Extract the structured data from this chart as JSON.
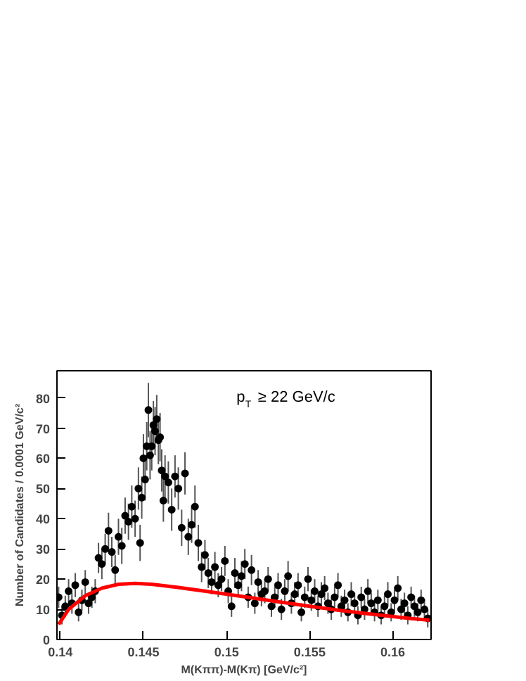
{
  "chart_data": {
    "type": "scatter",
    "xlabel": "M(Kππ)-M(Kπ) [GeV/c²]",
    "ylabel": "Number of Candidates / 0.0001 GeV/c²",
    "annotations": [
      "p$_{T}$ ≥ 22 GeV/c"
    ],
    "xlim": [
      0.1398,
      0.1623
    ],
    "ylim": [
      0,
      89
    ],
    "xticks": [
      0.14,
      0.145,
      0.15,
      0.155,
      0.16
    ],
    "yticks": [
      0,
      10,
      20,
      30,
      40,
      50,
      60,
      70,
      80
    ],
    "grid": false,
    "series": [
      {
        "type": "scatter",
        "color": "#000000",
        "marker": "circle",
        "x": [
          0.1399,
          0.1401,
          0.1403,
          0.1405,
          0.1407,
          0.1409,
          0.1411,
          0.1413,
          0.1415,
          0.1417,
          0.1419,
          0.1421,
          0.1423,
          0.1425,
          0.1427,
          0.1429,
          0.1431,
          0.1433,
          0.1435,
          0.1437,
          0.1439,
          0.1441,
          0.1443,
          0.1445,
          0.1447,
          0.1448,
          0.1449,
          0.145,
          0.1451,
          0.1452,
          0.1453,
          0.1454,
          0.1455,
          0.1456,
          0.1457,
          0.1458,
          0.1459,
          0.146,
          0.1461,
          0.1462,
          0.1463,
          0.1465,
          0.1467,
          0.1469,
          0.1471,
          0.1473,
          0.1475,
          0.1477,
          0.1479,
          0.1481,
          0.1483,
          0.1485,
          0.1487,
          0.1489,
          0.1491,
          0.1493,
          0.1495,
          0.1497,
          0.1499,
          0.1501,
          0.1503,
          0.1505,
          0.1507,
          0.1509,
          0.1511,
          0.1513,
          0.1515,
          0.1517,
          0.1519,
          0.1521,
          0.1523,
          0.1525,
          0.1527,
          0.1529,
          0.1531,
          0.1533,
          0.1535,
          0.1537,
          0.1539,
          0.1541,
          0.1543,
          0.1545,
          0.1547,
          0.1549,
          0.1551,
          0.1553,
          0.1555,
          0.1557,
          0.1559,
          0.1561,
          0.1563,
          0.1565,
          0.1567,
          0.1569,
          0.1571,
          0.1573,
          0.1575,
          0.1577,
          0.1579,
          0.1581,
          0.1583,
          0.1585,
          0.1587,
          0.1589,
          0.1591,
          0.1593,
          0.1595,
          0.1597,
          0.1599,
          0.1601,
          0.1603,
          0.1605,
          0.1607,
          0.1609,
          0.1611,
          0.1613,
          0.1615,
          0.1617,
          0.1619,
          0.1621
        ],
        "values": [
          14,
          8,
          11,
          16,
          12,
          18,
          9,
          13,
          19,
          12,
          14,
          16,
          27,
          25,
          30,
          36,
          29,
          23,
          34,
          31,
          41,
          39,
          44,
          40,
          50,
          32,
          47,
          60,
          53,
          64,
          76,
          61,
          64,
          71,
          69,
          73,
          66,
          67,
          56,
          46,
          54,
          52,
          43,
          54,
          50,
          37,
          55,
          34,
          38,
          44,
          32,
          24,
          28,
          22,
          19,
          24,
          18,
          20,
          26,
          16,
          11,
          22,
          18,
          21,
          25,
          14,
          23,
          12,
          19,
          15,
          16,
          20,
          11,
          14,
          18,
          10,
          16,
          21,
          12,
          15,
          18,
          9,
          14,
          20,
          13,
          16,
          11,
          15,
          17,
          12,
          10,
          14,
          18,
          11,
          13,
          9,
          15,
          12,
          8,
          14,
          10,
          16,
          12,
          9,
          13,
          8,
          11,
          15,
          9,
          13,
          17,
          10,
          12,
          8,
          14,
          11,
          9,
          13,
          10,
          7
        ],
        "errors": [
          3.5,
          3,
          3.5,
          4,
          3.5,
          4,
          3,
          3.5,
          4,
          3.5,
          3.5,
          4,
          5,
          5,
          5,
          6,
          5,
          5,
          6,
          6,
          6,
          6,
          7,
          6,
          7,
          6,
          7,
          8,
          7,
          8,
          9,
          8,
          8,
          8,
          8,
          8,
          8,
          8,
          7,
          7,
          7,
          7,
          7,
          7,
          7,
          6,
          7,
          6,
          6,
          7,
          6,
          5,
          5,
          5,
          4,
          5,
          4,
          4,
          5,
          4,
          3.5,
          5,
          4,
          5,
          5,
          3.5,
          5,
          3.5,
          4,
          4,
          4,
          4,
          3.5,
          3.5,
          4,
          3.5,
          4,
          5,
          3.5,
          4,
          4,
          3,
          3.5,
          4,
          3.5,
          4,
          3.5,
          4,
          4,
          3.5,
          3.5,
          3.5,
          4,
          3.5,
          3.5,
          3,
          4,
          3.5,
          3,
          3.5,
          3.5,
          4,
          3.5,
          3,
          3.5,
          3,
          3.5,
          4,
          3,
          3.5,
          4,
          3.5,
          3.5,
          3,
          3.5,
          3.5,
          3,
          3.5,
          3.5,
          3
        ]
      },
      {
        "type": "line",
        "color": "#ff0000",
        "line_style": "solid",
        "x": [
          0.1399,
          0.1405,
          0.1415,
          0.1425,
          0.1435,
          0.1445,
          0.1455,
          0.147,
          0.149,
          0.151,
          0.153,
          0.155,
          0.157,
          0.159,
          0.161,
          0.1622
        ],
        "values": [
          5,
          10,
          14.5,
          17,
          18.3,
          18.6,
          18.3,
          17.3,
          15.8,
          14.2,
          12.6,
          11,
          9.5,
          8.2,
          7,
          6.4
        ]
      }
    ]
  }
}
